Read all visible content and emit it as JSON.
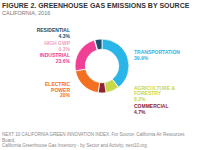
{
  "chart_data": {
    "type": "donut",
    "title": "FIGURE 2. GREENHOUSE GAS EMISSIONS BY SOURCE",
    "subtitle": "CALIFORNIA, 2016",
    "annotations": [
      "NEXT 10 CALIFORNIA GREEN INNOVATION INDEX. For Source: California Air Resources Board,",
      "California Greenhouse Gas Inventory - by Sector and Activity, next10.org"
    ],
    "categories": [
      "TRANSPORTATION",
      "AGRICULTURE & FORESTRY",
      "COMMERCIAL",
      "ELECTRIC POWER",
      "INDUSTRIAL",
      "HIGH GWP",
      "RESIDENTIAL"
    ],
    "values": [
      39.9,
      8.2,
      4.7,
      20.0,
      23.6,
      0.3,
      4.3
    ],
    "value_labels": [
      "39.9%",
      "8.2%",
      "4.7%",
      "20%",
      "23.6%",
      "0.3%",
      "4.3%"
    ],
    "colors": [
      "#29B5E8",
      "#C8D84B",
      "#8B2436",
      "#F37021",
      "#EF4096",
      "#F0A0C0",
      "#1A4F6E"
    ],
    "data_labels": true
  }
}
